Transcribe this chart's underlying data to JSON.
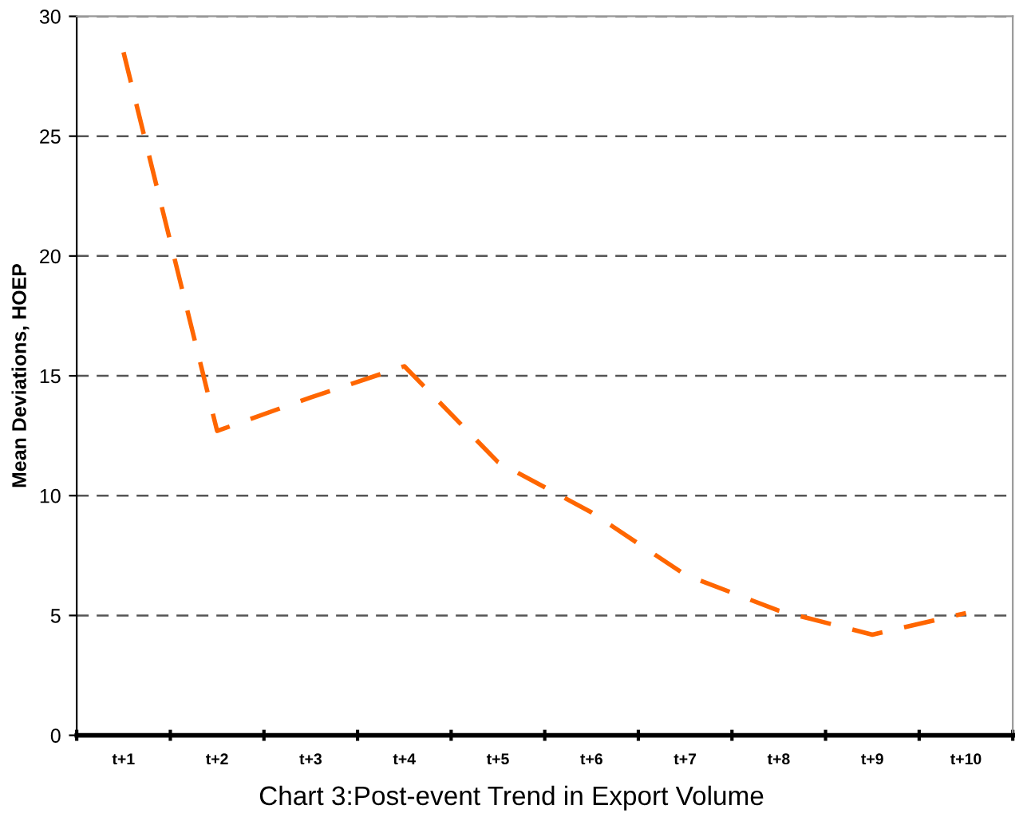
{
  "chart_data": {
    "type": "line",
    "title": "Chart 3:Post-event Trend in Export Volume",
    "ylabel": "Mean Deviations, HOEP",
    "categories": [
      "t+1",
      "t+2",
      "t+3",
      "t+4",
      "t+5",
      "t+6",
      "t+7",
      "t+8",
      "t+9",
      "t+10"
    ],
    "series": [
      {
        "color": "#ff6600",
        "values": [
          28.5,
          12.7,
          14.1,
          15.4,
          11.4,
          9.3,
          6.7,
          5.2,
          4.2,
          5.1
        ]
      }
    ],
    "ylim": [
      0,
      30
    ],
    "yticks": [
      0,
      5,
      10,
      15,
      20,
      25,
      30
    ],
    "grid": "y",
    "line_style": "dashed",
    "marker": "none"
  }
}
